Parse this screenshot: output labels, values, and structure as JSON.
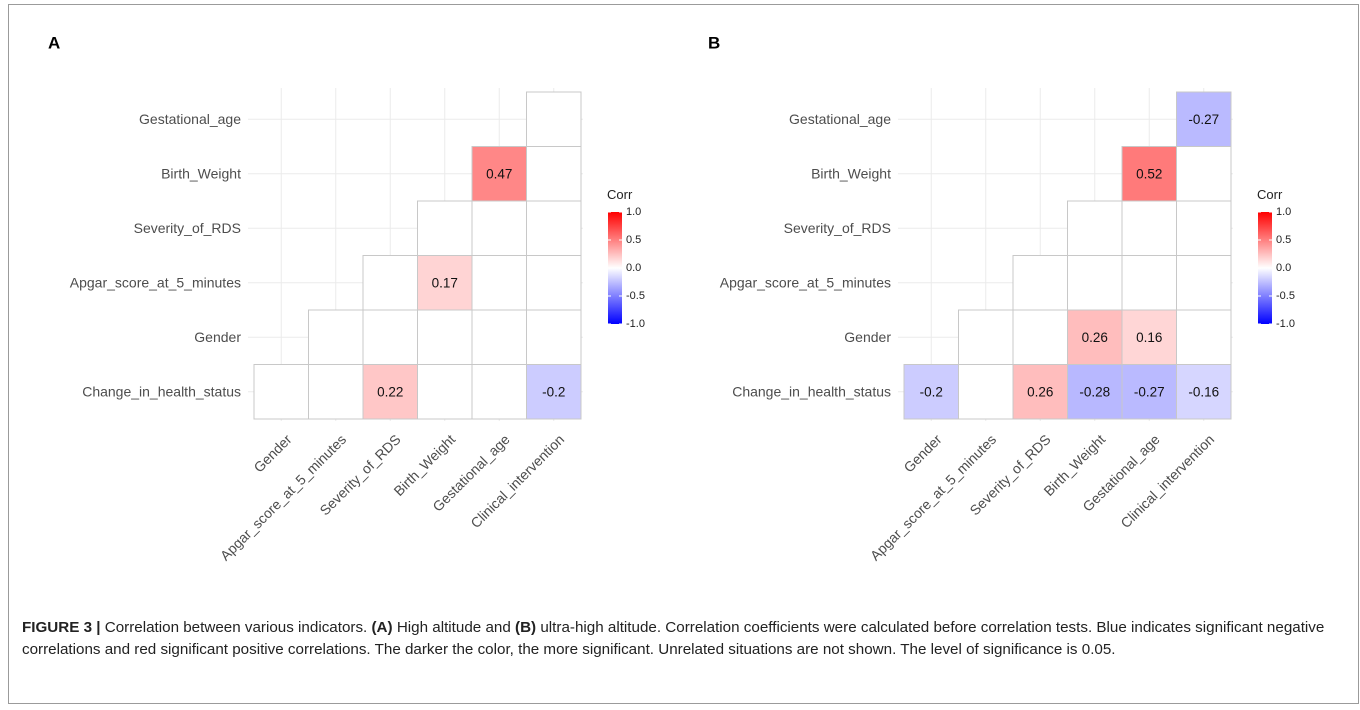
{
  "figure": {
    "caption_label": "FIGURE 3 |",
    "caption_p1": " Correlation between various indicators. ",
    "caption_a": "(A)",
    "caption_p2": " High altitude and ",
    "caption_b": "(B)",
    "caption_p3": " ultra-high altitude. Correlation coefficients were calculated before correlation tests. Blue indicates significant negative correlations and red significant positive correlations. The darker the color, the more significant. Unrelated situations are not shown. The level of significance is 0.05."
  },
  "colors": {
    "negative": "#0000ff",
    "neutral": "#ffffff",
    "positive": "#ff0000",
    "grid": "#ebebeb",
    "cell_border": "#c8c8c8"
  },
  "chart_data": [
    {
      "type": "heatmap",
      "panel_label": "A",
      "columns": [
        "Gender",
        "Apgar_score_at_5_minutes",
        "Severity_of_RDS",
        "Birth_Weight",
        "Gestational_age",
        "Clinical_intervention"
      ],
      "rows": [
        "Gestational_age",
        "Birth_Weight",
        "Severity_of_RDS",
        "Apgar_score_at_5_minutes",
        "Gender",
        "Change_in_health_status"
      ],
      "lower_triangle": true,
      "values": [
        [
          null,
          null,
          null,
          null,
          null,
          null
        ],
        [
          null,
          null,
          null,
          null,
          0.47,
          null
        ],
        [
          null,
          null,
          null,
          null,
          null,
          null
        ],
        [
          null,
          null,
          null,
          0.17,
          null,
          null
        ],
        [
          null,
          null,
          null,
          null,
          null,
          null
        ],
        [
          null,
          null,
          0.22,
          null,
          null,
          -0.2
        ]
      ],
      "legend": {
        "title": "Corr",
        "ticks": [
          "1.0",
          "0.5",
          "0.0",
          "-0.5",
          "-1.0"
        ],
        "range": [
          -1,
          1
        ]
      }
    },
    {
      "type": "heatmap",
      "panel_label": "B",
      "columns": [
        "Gender",
        "Apgar_score_at_5_minutes",
        "Severity_of_RDS",
        "Birth_Weight",
        "Gestational_age",
        "Clinical_intervention"
      ],
      "rows": [
        "Gestational_age",
        "Birth_Weight",
        "Severity_of_RDS",
        "Apgar_score_at_5_minutes",
        "Gender",
        "Change_in_health_status"
      ],
      "lower_triangle": true,
      "values": [
        [
          null,
          null,
          null,
          null,
          null,
          -0.27
        ],
        [
          null,
          null,
          null,
          null,
          0.52,
          null
        ],
        [
          null,
          null,
          null,
          null,
          null,
          null
        ],
        [
          null,
          null,
          null,
          null,
          null,
          null
        ],
        [
          null,
          null,
          null,
          0.26,
          0.16,
          null
        ],
        [
          -0.2,
          null,
          0.26,
          -0.28,
          -0.27,
          -0.16
        ]
      ],
      "legend": {
        "title": "Corr",
        "ticks": [
          "1.0",
          "0.5",
          "0.0",
          "-0.5",
          "-1.0"
        ],
        "range": [
          -1,
          1
        ]
      }
    }
  ]
}
